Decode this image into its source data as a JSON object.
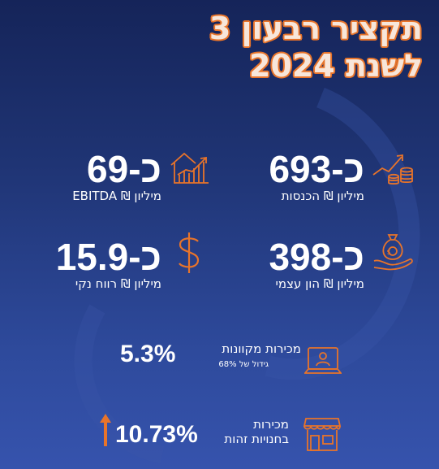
{
  "title": {
    "line1": "תקציר רבעון 3",
    "line2": "לשנת 2024"
  },
  "stats": {
    "revenue": {
      "value": "כ-693",
      "label": "מיליון ₪ הכנסות",
      "icon": "growth-coins-icon"
    },
    "ebitda": {
      "value": "כ-69",
      "label": "מיליון ₪ EBITDA",
      "icon": "house-chart-icon"
    },
    "equity": {
      "value": "כ-398",
      "label": "מיליון ₪ הון עצמי",
      "icon": "money-bag-hand-icon"
    },
    "net_profit": {
      "value": "כ-15.9",
      "label": "מיליון ₪ רווח נקי",
      "icon": "dollar-sign-icon"
    }
  },
  "online_sales": {
    "value": "5.3%",
    "label": "מכירות מקוונות",
    "note": "גידול של 68%",
    "icon": "laptop-user-icon"
  },
  "store_sales": {
    "value": "10.73%",
    "label_line1": "מכירות",
    "label_line2": "בחנויות זהות",
    "icon": "storefront-icon",
    "trend_icon": "arrow-up-icon"
  },
  "colors": {
    "accent": "#e8742a",
    "title_fill": "#f7e6da",
    "background_top": "#152459",
    "background_bottom": "#3653ad"
  }
}
